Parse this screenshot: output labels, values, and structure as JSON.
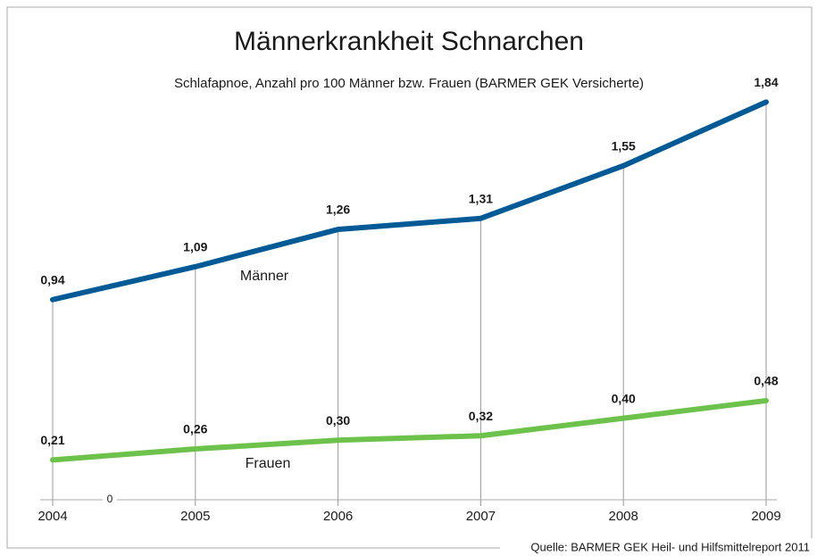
{
  "chart_data": {
    "type": "line",
    "title": "Männerkrankheit Schnarchen",
    "subtitle": "Schlafapnoe, Anzahl pro 100 Männer bzw. Frauen (BARMER GEK Versicherte)",
    "source": "Quelle: BARMER GEK Heil- und Hilfsmittelreport 2011",
    "categories": [
      "2004",
      "2005",
      "2006",
      "2007",
      "2008",
      "2009"
    ],
    "series": [
      {
        "name": "Männer",
        "color": "#005a96",
        "values": [
          0.94,
          1.09,
          1.26,
          1.31,
          1.55,
          1.84
        ],
        "value_labels": [
          "0,94",
          "1,09",
          "1,26",
          "1,31",
          "1,55",
          "1,84"
        ]
      },
      {
        "name": "Frauen",
        "color": "#6cc24a",
        "values": [
          0.21,
          0.26,
          0.3,
          0.32,
          0.4,
          0.48
        ],
        "value_labels": [
          "0,21",
          "0,26",
          "0,30",
          "0,32",
          "0,40",
          "0,48"
        ]
      }
    ],
    "ylim": [
      0,
      2
    ],
    "yticks": [
      0
    ],
    "grid": false
  }
}
